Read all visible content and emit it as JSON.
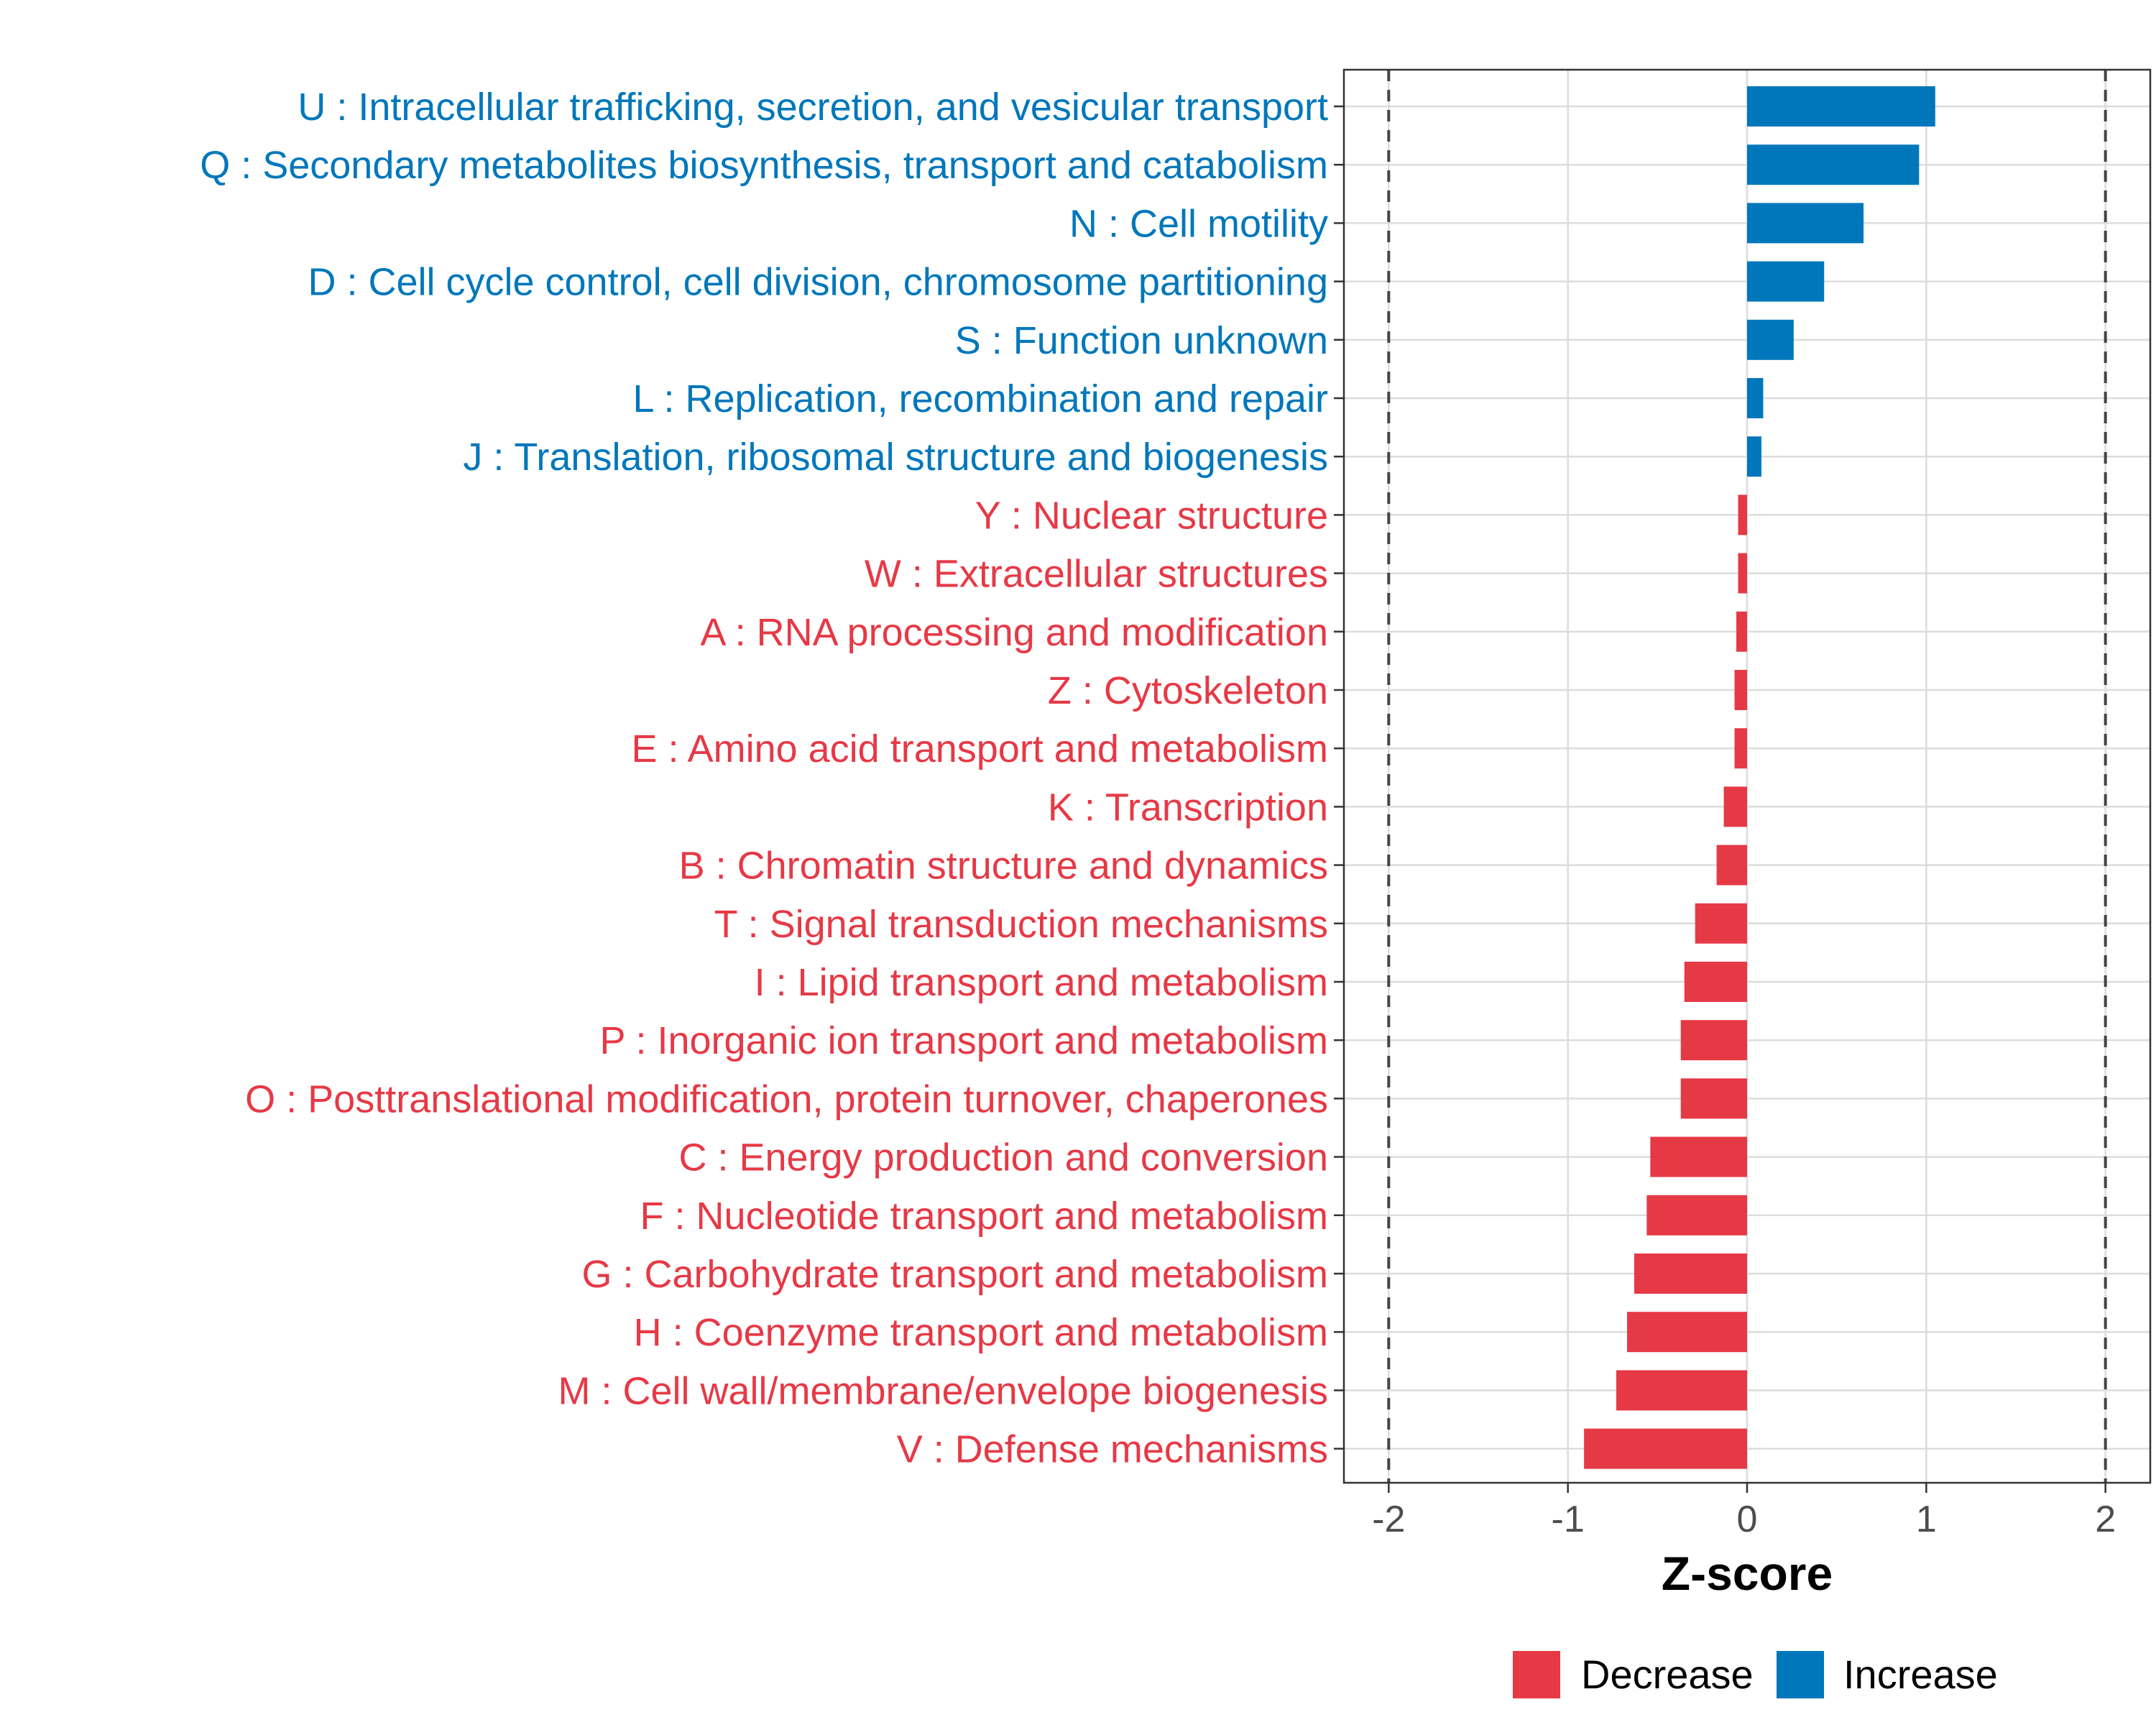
{
  "chart_data": {
    "type": "bar",
    "orientation": "horizontal",
    "xlabel": "Z-score",
    "xlim": [
      -2.25,
      2.25
    ],
    "x_ticks": [
      -2,
      -1,
      0,
      1,
      2
    ],
    "x_tick_labels": [
      "-2",
      "-1",
      "0",
      "1",
      "2"
    ],
    "reference_lines": [
      -2,
      2
    ],
    "grid": true,
    "categories": [
      "U : Intracellular trafficking, secretion, and vesicular transport",
      "Q : Secondary metabolites biosynthesis, transport and catabolism",
      "N : Cell motility",
      "D : Cell cycle control, cell division, chromosome partitioning",
      "S : Function unknown",
      "L : Replication, recombination and repair",
      "J : Translation, ribosomal structure and biogenesis",
      "Y : Nuclear structure",
      "W : Extracellular structures",
      "A : RNA processing and modification",
      "Z : Cytoskeleton",
      "E : Amino acid transport and metabolism",
      "K : Transcription",
      "B : Chromatin structure and dynamics",
      "T : Signal transduction mechanisms",
      "I : Lipid transport and metabolism",
      "P : Inorganic ion transport and metabolism",
      "O : Posttranslational modification, protein turnover, chaperones",
      "C : Energy production and conversion",
      "F : Nucleotide transport and metabolism",
      "G : Carbohydrate transport and metabolism",
      "H : Coenzyme transport and metabolism",
      "M : Cell wall/membrane/envelope biogenesis",
      "V : Defense mechanisms"
    ],
    "values": [
      1.05,
      0.96,
      0.65,
      0.43,
      0.26,
      0.09,
      0.08,
      -0.05,
      -0.05,
      -0.06,
      -0.07,
      -0.07,
      -0.13,
      -0.17,
      -0.29,
      -0.35,
      -0.37,
      -0.37,
      -0.54,
      -0.56,
      -0.63,
      -0.67,
      -0.73,
      -0.91
    ],
    "groups": [
      "Increase",
      "Increase",
      "Increase",
      "Increase",
      "Increase",
      "Increase",
      "Increase",
      "Decrease",
      "Decrease",
      "Decrease",
      "Decrease",
      "Decrease",
      "Decrease",
      "Decrease",
      "Decrease",
      "Decrease",
      "Decrease",
      "Decrease",
      "Decrease",
      "Decrease",
      "Decrease",
      "Decrease",
      "Decrease",
      "Decrease"
    ],
    "legend": {
      "position": "bottom",
      "entries": [
        {
          "label": "Decrease",
          "color": "#e63946"
        },
        {
          "label": "Increase",
          "color": "#0077bb"
        }
      ]
    },
    "colors": {
      "Decrease": "#e63946",
      "Increase": "#0077bb",
      "grid": "#dcdcdc",
      "panel_border": "#333333",
      "reference_line": "#444444"
    }
  }
}
